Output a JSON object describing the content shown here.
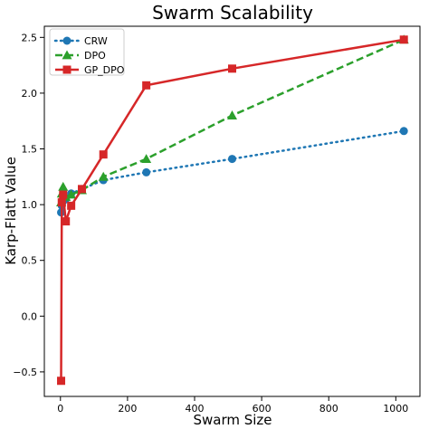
{
  "chart_data": {
    "type": "line",
    "title": "Swarm Scalability",
    "xlabel": "Swarm Size",
    "ylabel": "Karp-Flatt Value",
    "xlim": [
      -48,
      1072
    ],
    "ylim": [
      -0.72,
      2.6
    ],
    "xticks": [
      0,
      200,
      400,
      600,
      800,
      1000
    ],
    "yticks": [
      -0.5,
      0.0,
      0.5,
      1.0,
      1.5,
      2.0,
      2.5
    ],
    "xtick_labels": [
      "0",
      "200",
      "400",
      "600",
      "800",
      "1000"
    ],
    "ytick_labels": [
      "−0.5",
      "0.0",
      "0.5",
      "1.0",
      "1.5",
      "2.0",
      "2.5"
    ],
    "grid": false,
    "legend_position": "top-left",
    "series": [
      {
        "name": "CRW",
        "color": "#1f77b4",
        "line_style": "dotted",
        "marker": "circle",
        "x": [
          2,
          4,
          8,
          16,
          32,
          64,
          128,
          256,
          512,
          1024
        ],
        "y": [
          0.93,
          0.99,
          1.03,
          1.05,
          1.1,
          1.14,
          1.22,
          1.29,
          1.41,
          1.66
        ]
      },
      {
        "name": "DPO",
        "color": "#2ca02c",
        "line_style": "dashed",
        "marker": "triangle",
        "x": [
          2,
          4,
          8,
          16,
          32,
          64,
          128,
          256,
          512,
          1024
        ],
        "y": [
          1.02,
          1.1,
          1.16,
          1.07,
          1.09,
          1.13,
          1.25,
          1.41,
          1.8,
          2.48
        ]
      },
      {
        "name": "GP_DPO",
        "color": "#d62728",
        "line_style": "solid",
        "marker": "square",
        "x": [
          2,
          4,
          8,
          16,
          32,
          64,
          128,
          256,
          512,
          1024
        ],
        "y": [
          -0.58,
          1.02,
          1.09,
          0.85,
          0.99,
          1.14,
          1.45,
          2.07,
          2.22,
          2.48
        ]
      }
    ]
  }
}
